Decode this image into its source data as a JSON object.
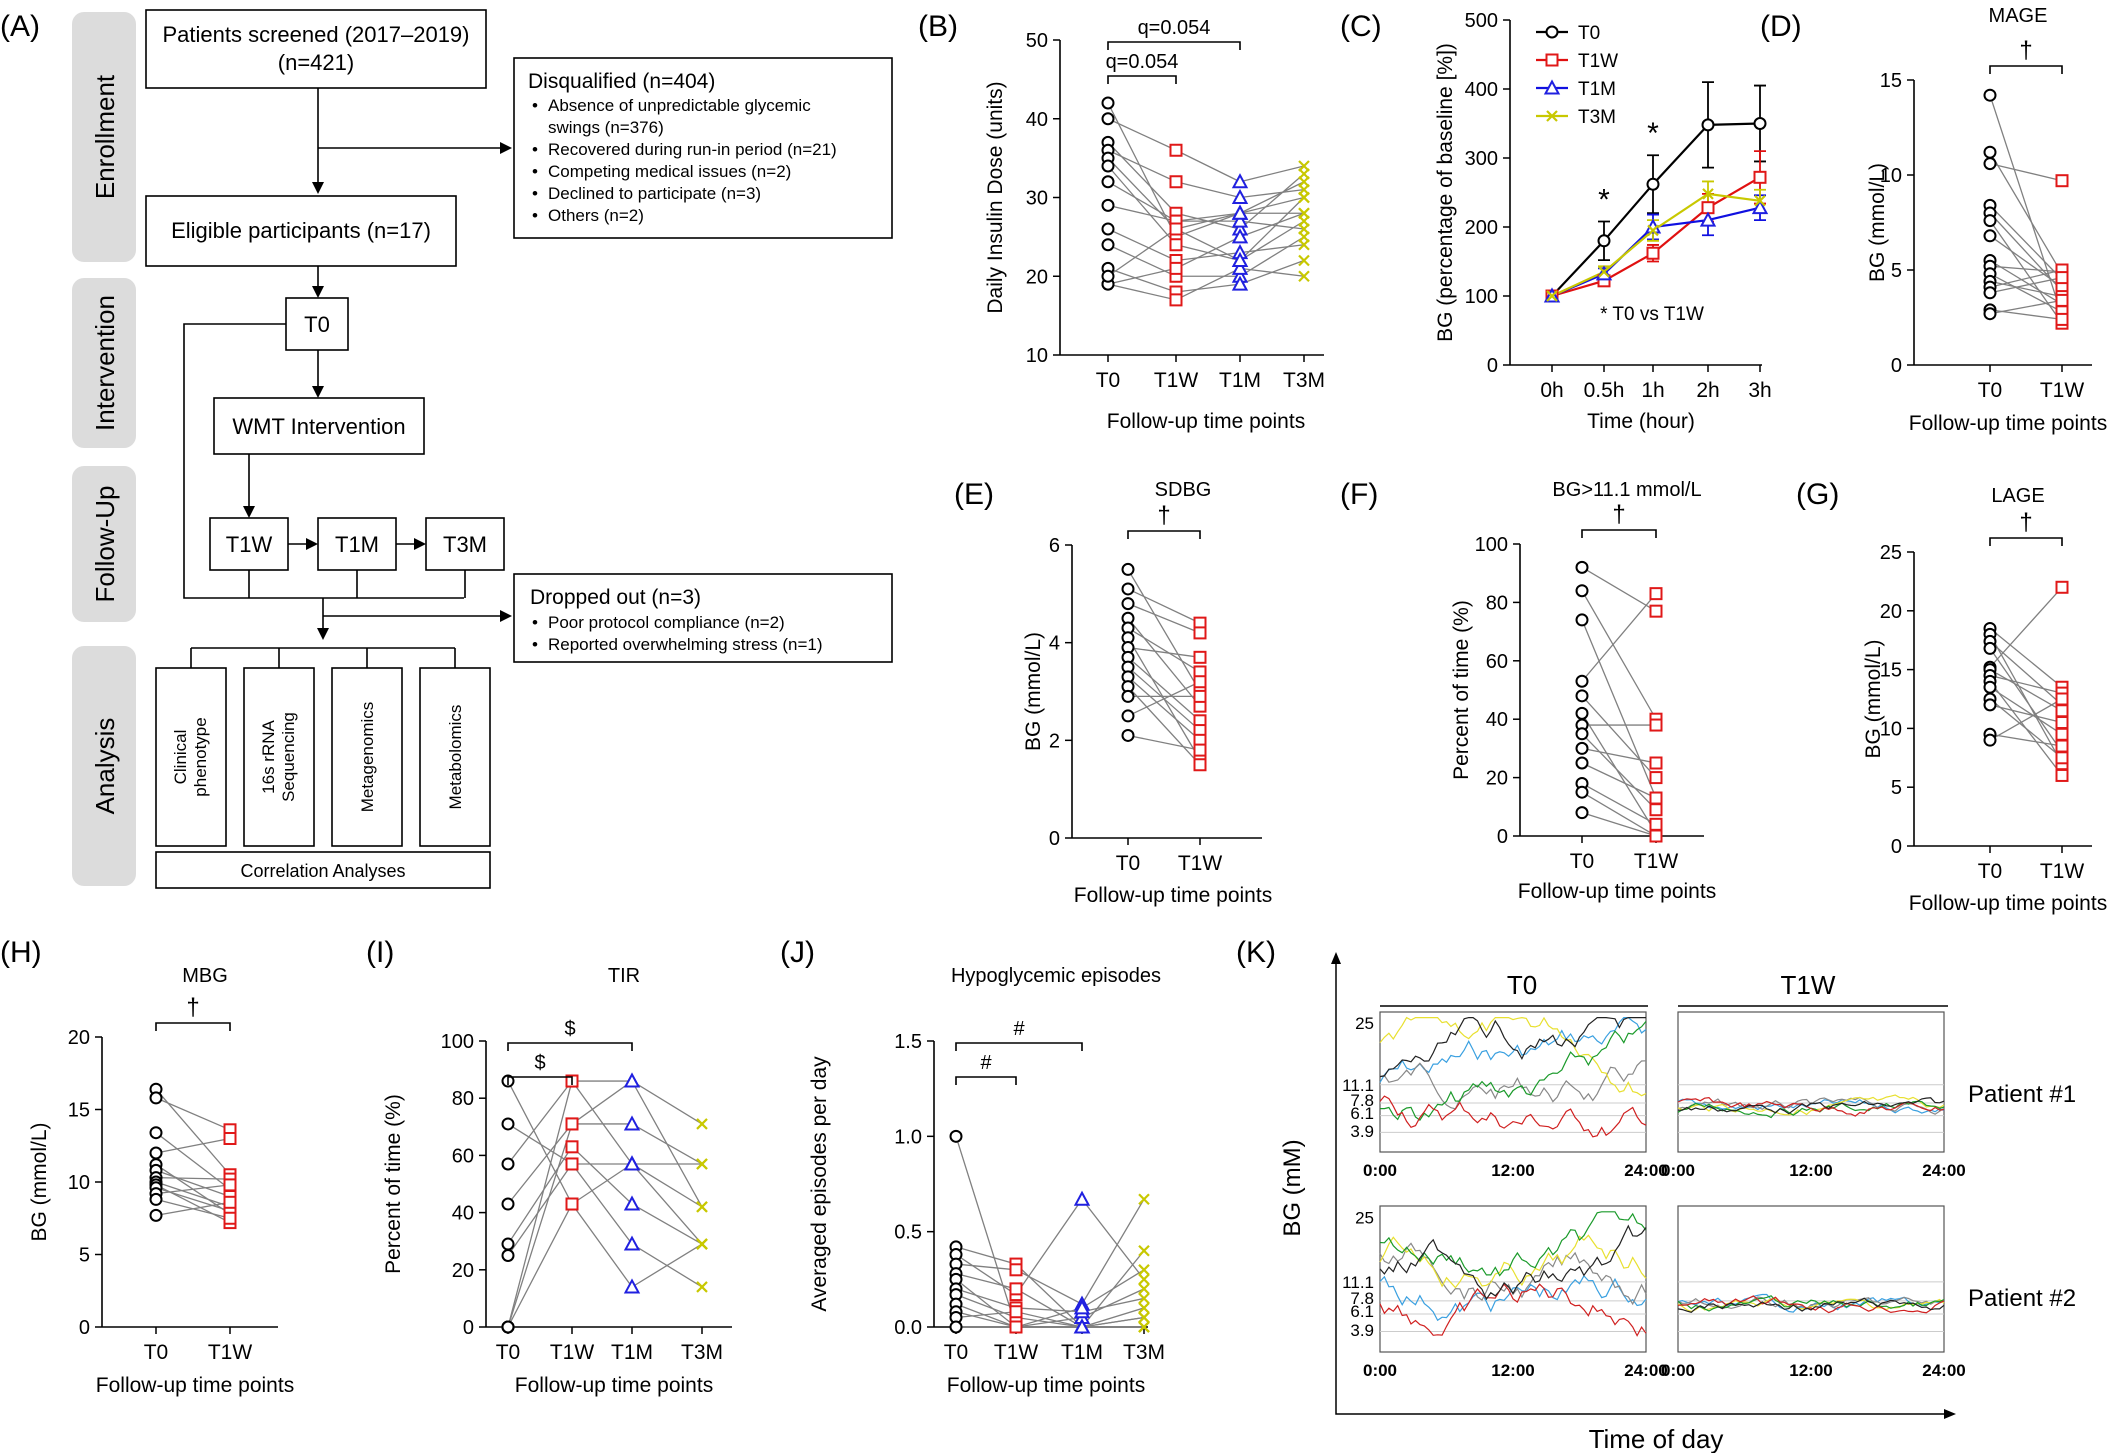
{
  "panel_letters": {
    "A": "(A)",
    "B": "(B)",
    "C": "(C)",
    "D": "(D)",
    "E": "(E)",
    "F": "(F)",
    "G": "(G)",
    "H": "(H)",
    "I": "(I)",
    "J": "(J)",
    "K": "(K)"
  },
  "flowchart": {
    "stages": [
      "Enrollment",
      "Intervention",
      "Follow-Up",
      "Analysis"
    ],
    "screened_line1": "Patients screened (2017–2019)",
    "screened_line2": "(n=421)",
    "disqualified_title": "Disqualified (n=404)",
    "disqualified_items": [
      "Absence of unpredictable glycemic",
      "swings (n=376)",
      "Recovered during run-in period (n=21)",
      "Competing medical issues (n=2)",
      "Declined to participate (n=3)",
      "Others (n=2)"
    ],
    "eligible": "Eligible participants (n=17)",
    "t0": "T0",
    "intervention": "WMT Intervention",
    "t1w": "T1W",
    "t1m": "T1M",
    "t3m": "T3M",
    "dropped_title": "Dropped out (n=3)",
    "dropped_items": [
      "Poor protocol compliance (n=2)",
      "Reported overwhelming stress (n=1)"
    ],
    "analyses": [
      [
        "Clinical",
        "phenotype"
      ],
      [
        "16s rRNA",
        "Sequencing"
      ],
      [
        "Metagenomics"
      ],
      [
        "Metabolomics"
      ]
    ],
    "correlation": "Correlation Analyses"
  },
  "chart_data": [
    {
      "id": "B",
      "type": "line",
      "subtitle": "",
      "ylabel": "Daily Insulin Dose (units)",
      "xlabel": "Follow-up time points",
      "categories": [
        "T0",
        "T1W",
        "T1M",
        "T3M"
      ],
      "ylim": [
        10,
        50
      ],
      "yticks": [
        10,
        20,
        30,
        40,
        50
      ],
      "annotations": [
        {
          "text": "q=0.054",
          "from": "T0",
          "to": "T1W",
          "level": 1
        },
        {
          "text": "q=0.054",
          "from": "T0",
          "to": "T1M",
          "level": 2
        }
      ],
      "series_points": [
        [
          42,
          25,
          28,
          30
        ],
        [
          40,
          36,
          32,
          34
        ],
        [
          37,
          28,
          26,
          33
        ],
        [
          36,
          32,
          30,
          31
        ],
        [
          35,
          26,
          28,
          28
        ],
        [
          34,
          24,
          22,
          30
        ],
        [
          32,
          27,
          27,
          26
        ],
        [
          29,
          27,
          28,
          32
        ],
        [
          26,
          22,
          23,
          24
        ],
        [
          24,
          20,
          20,
          25
        ],
        [
          21,
          18,
          19,
          22
        ],
        [
          19,
          17,
          21,
          20
        ],
        [
          19,
          21,
          25,
          28
        ],
        [
          20,
          26,
          22,
          27
        ]
      ]
    },
    {
      "id": "C",
      "type": "line",
      "ylabel": "BG (percentage of baseline [%])",
      "xlabel": "Time (hour)",
      "categories": [
        "0h",
        "0.5h",
        "1h",
        "2h",
        "3h"
      ],
      "ylim": [
        0,
        500
      ],
      "yticks": [
        0,
        100,
        200,
        300,
        400,
        500
      ],
      "series": [
        {
          "name": "T0",
          "color": "#000000",
          "values": [
            100,
            180,
            262,
            348,
            350
          ],
          "err": [
            0,
            28,
            42,
            62,
            55
          ]
        },
        {
          "name": "T1W",
          "color": "#e01010",
          "values": [
            100,
            122,
            162,
            228,
            272
          ],
          "err": [
            0,
            6,
            12,
            20,
            38
          ]
        },
        {
          "name": "T1M",
          "color": "#1010e0",
          "values": [
            100,
            132,
            200,
            210,
            228
          ],
          "err": [
            0,
            8,
            18,
            22,
            18
          ]
        },
        {
          "name": "T3M",
          "color": "#c8c800",
          "values": [
            100,
            135,
            195,
            248,
            238
          ],
          "err": [
            0,
            8,
            15,
            18,
            16
          ]
        }
      ],
      "stars": [
        {
          "at": "0.5h",
          "text": "*"
        },
        {
          "at": "1h",
          "text": "*"
        }
      ],
      "note": "* T0 vs T1W"
    },
    {
      "id": "D",
      "type": "line",
      "title": "MAGE",
      "ylabel": "BG (mmol/L)",
      "xlabel": "Follow-up time points",
      "categories": [
        "T0",
        "T1W"
      ],
      "ylim": [
        0,
        15
      ],
      "yticks": [
        0,
        5,
        10,
        15
      ],
      "annotation": "†",
      "series_points": [
        [
          14.2,
          2.6
        ],
        [
          11.2,
          4.8
        ],
        [
          10.6,
          9.7
        ],
        [
          8.4,
          4.5
        ],
        [
          8.0,
          3.9
        ],
        [
          7.6,
          2.2
        ],
        [
          6.8,
          4.1
        ],
        [
          5.5,
          3.2
        ],
        [
          5.2,
          4.9
        ],
        [
          4.8,
          2.8
        ],
        [
          4.4,
          3.6
        ],
        [
          4.1,
          5.0
        ],
        [
          3.8,
          4.6
        ],
        [
          2.9,
          2.4
        ],
        [
          2.7,
          3.4
        ]
      ]
    },
    {
      "id": "E",
      "type": "line",
      "title": "SDBG",
      "ylabel": "BG (mmol/L)",
      "xlabel": "Follow-up time points",
      "categories": [
        "T0",
        "T1W"
      ],
      "ylim": [
        0,
        6
      ],
      "yticks": [
        0,
        2,
        4,
        6
      ],
      "annotation": "†",
      "series_points": [
        [
          5.5,
          3.0
        ],
        [
          5.1,
          4.4
        ],
        [
          4.8,
          4.2
        ],
        [
          4.5,
          2.7
        ],
        [
          4.3,
          3.4
        ],
        [
          4.1,
          1.6
        ],
        [
          3.9,
          3.7
        ],
        [
          3.7,
          2.4
        ],
        [
          3.5,
          2.2
        ],
        [
          3.3,
          2.0
        ],
        [
          3.1,
          1.5
        ],
        [
          2.9,
          2.9
        ],
        [
          2.5,
          3.2
        ],
        [
          2.1,
          1.8
        ]
      ]
    },
    {
      "id": "F",
      "type": "line",
      "title": "BG>11.1 mmol/L",
      "ylabel": "Percent of time (%)",
      "xlabel": "Follow-up time points",
      "categories": [
        "T0",
        "T1W"
      ],
      "ylim": [
        0,
        100
      ],
      "yticks": [
        0,
        20,
        40,
        60,
        80,
        100
      ],
      "annotation": "†",
      "series_points": [
        [
          92,
          77
        ],
        [
          84,
          40
        ],
        [
          74,
          13
        ],
        [
          53,
          83
        ],
        [
          48,
          20
        ],
        [
          42,
          1
        ],
        [
          38,
          38
        ],
        [
          35,
          9
        ],
        [
          30,
          25
        ],
        [
          25,
          13
        ],
        [
          18,
          4
        ],
        [
          15,
          0
        ],
        [
          8,
          0
        ]
      ]
    },
    {
      "id": "G",
      "type": "line",
      "title": "LAGE",
      "ylabel": "BG (mmol/L)",
      "xlabel": "Follow-up time points",
      "categories": [
        "T0",
        "T1W"
      ],
      "ylim": [
        0,
        25
      ],
      "yticks": [
        0,
        5,
        10,
        15,
        20,
        25
      ],
      "annotation": "†",
      "series_points": [
        [
          18.5,
          13.5
        ],
        [
          18.0,
          7.0
        ],
        [
          17.4,
          12.0
        ],
        [
          16.8,
          8.0
        ],
        [
          15.2,
          22.0
        ],
        [
          15.0,
          11.5
        ],
        [
          14.5,
          13.0
        ],
        [
          14.0,
          6.0
        ],
        [
          13.5,
          9.5
        ],
        [
          12.5,
          7.5
        ],
        [
          12.0,
          10.5
        ],
        [
          9.5,
          8.5
        ],
        [
          9.0,
          12.5
        ]
      ]
    },
    {
      "id": "H",
      "type": "line",
      "title": "MBG",
      "ylabel": "BG (mmol/L)",
      "xlabel": "Follow-up time points",
      "categories": [
        "T0",
        "T1W"
      ],
      "ylim": [
        0,
        20
      ],
      "yticks": [
        0,
        5,
        10,
        15,
        20
      ],
      "annotation": "†",
      "series_points": [
        [
          16.4,
          10.5
        ],
        [
          15.8,
          13.6
        ],
        [
          13.4,
          9.5
        ],
        [
          12.0,
          13.0
        ],
        [
          11.2,
          7.8
        ],
        [
          10.8,
          9.0
        ],
        [
          10.3,
          10.2
        ],
        [
          10.0,
          8.3
        ],
        [
          9.8,
          7.2
        ],
        [
          9.6,
          8.0
        ],
        [
          9.2,
          9.8
        ],
        [
          8.8,
          7.5
        ],
        [
          7.7,
          8.6
        ]
      ]
    },
    {
      "id": "I",
      "type": "line",
      "title": "TIR",
      "ylabel": "Percent of time (%)",
      "xlabel": "Follow-up time points",
      "categories": [
        "T0",
        "T1W",
        "T1M",
        "T3M"
      ],
      "ylim": [
        0,
        100
      ],
      "yticks": [
        0,
        20,
        40,
        60,
        80,
        100
      ],
      "annotations": [
        {
          "text": "$",
          "from": "T0",
          "to": "T1W",
          "level": 1
        },
        {
          "text": "$",
          "from": "T0",
          "to": "T1M",
          "level": 2
        }
      ],
      "series_points": [
        [
          86,
          43,
          14,
          29
        ],
        [
          71,
          57,
          57,
          42
        ],
        [
          57,
          86,
          86,
          71
        ],
        [
          43,
          71,
          71,
          57
        ],
        [
          29,
          63,
          43,
          29
        ],
        [
          25,
          57,
          29,
          14
        ],
        [
          0,
          43,
          57,
          57
        ],
        [
          0,
          71,
          86,
          42
        ],
        [
          0,
          86,
          57,
          29
        ]
      ]
    },
    {
      "id": "J",
      "type": "line",
      "title": "Hypoglycemic episodes",
      "ylabel": "Averaged episodes per day",
      "xlabel": "Follow-up time points",
      "categories": [
        "T0",
        "T1W",
        "T1M",
        "T3M"
      ],
      "ylim": [
        0,
        1.5
      ],
      "yticks": [
        "0.0",
        "0.5",
        "1.0",
        "1.5"
      ],
      "annotations": [
        {
          "text": "#",
          "from": "T0",
          "to": "T1W",
          "level": 1
        },
        {
          "text": "#",
          "from": "T0",
          "to": "T1M",
          "level": 2
        }
      ],
      "series_points": [
        [
          1.0,
          0.0,
          0.0,
          0.0
        ],
        [
          0.42,
          0.33,
          0.0,
          0.4
        ],
        [
          0.38,
          0.17,
          0.67,
          0.25
        ],
        [
          0.33,
          0.3,
          0.12,
          0.67
        ],
        [
          0.28,
          0.2,
          0.0,
          0.1
        ],
        [
          0.25,
          0.0,
          0.05,
          0.2
        ],
        [
          0.2,
          0.1,
          0.08,
          0.15
        ],
        [
          0.17,
          0.05,
          0.0,
          0.05
        ],
        [
          0.12,
          0.0,
          0.0,
          0.0
        ],
        [
          0.08,
          0.0,
          0.1,
          0.3
        ],
        [
          0.05,
          0.08,
          0.0,
          0.0
        ],
        [
          0.0,
          0.0,
          0.0,
          0.05
        ]
      ]
    }
  ],
  "panel_k": {
    "header_left": "T0",
    "header_right": "T1W",
    "row_labels": [
      "Patient #1",
      "Patient #2"
    ],
    "ylabel": "BG (mM)",
    "xlabel": "Time of day",
    "yticks": [
      "25",
      "11.1",
      "7.8",
      "6.1",
      "3.9"
    ],
    "xticks": [
      "0:00",
      "12:00",
      "24:00"
    ]
  }
}
